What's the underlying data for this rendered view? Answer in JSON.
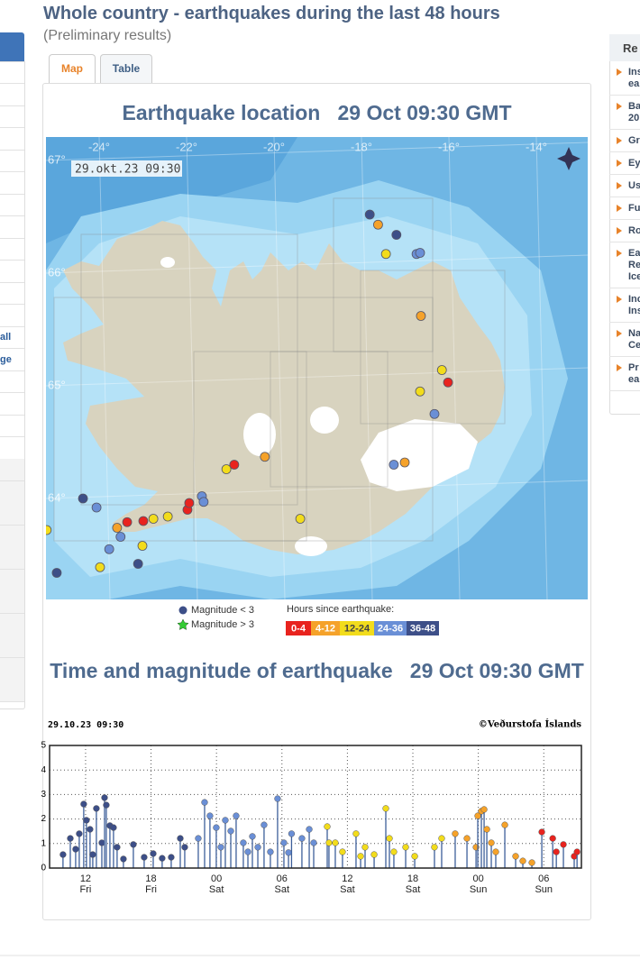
{
  "header": {
    "title": "Whole country - earthquakes during the last 48 hours",
    "subtitle": "(Preliminary results)"
  },
  "tabs": [
    "Map",
    "Table"
  ],
  "left_menu": [
    "all",
    "ge"
  ],
  "right_menu": {
    "title": "Re",
    "items": [
      "Ins\nea",
      "Ba\n20",
      "Gr",
      "Ey",
      "Us",
      "Fu",
      "Ro",
      "Ea\nRe\nIce",
      "Inc\nIns",
      "Na\nCe",
      "Pr\nea"
    ]
  },
  "map": {
    "title": "Earthquake location   29 Oct 09:30 GMT",
    "stamp": "29.okt.23  09:30",
    "lon_ticks": [
      {
        "value": -24,
        "label": "-24°"
      },
      {
        "value": -22,
        "label": "-22°"
      },
      {
        "value": -20,
        "label": "-20°"
      },
      {
        "value": -18,
        "label": "-18°"
      },
      {
        "value": -16,
        "label": "-16°"
      },
      {
        "value": -14,
        "label": "-14°"
      }
    ],
    "lat_ticks": [
      {
        "value": 67,
        "label": "67°"
      },
      {
        "value": 66,
        "label": "66°"
      },
      {
        "value": 65,
        "label": "65°"
      },
      {
        "value": 64,
        "label": "64°"
      }
    ],
    "magnitude_legend": [
      "Magnitude < 3",
      "Magnitude > 3"
    ],
    "age_legend": {
      "title": "Hours since earthquake:",
      "buckets": [
        {
          "label": "0-4",
          "color": "#e8231e",
          "lon": [
            -22.99,
            -23.36,
            -21.98,
            -21.94,
            -20.91,
            -16.02
          ],
          "lat": [
            63.8,
            63.79,
            63.9,
            63.96,
            64.3,
            65.03
          ]
        },
        {
          "label": "4-12",
          "color": "#f5a22a",
          "lon": [
            -17.62,
            -16.64,
            -17.01,
            -20.21,
            -23.59
          ],
          "lat": [
            66.43,
            65.62,
            64.32,
            64.37,
            63.74
          ]
        },
        {
          "label": "12-24",
          "color": "#f2dc1c",
          "lon": [
            -17.44,
            -16.16,
            -16.66,
            -21.09,
            -22.76,
            -22.43,
            -23.01,
            -23.98,
            -19.4,
            -25.2
          ],
          "lat": [
            66.17,
            65.14,
            64.95,
            64.26,
            63.82,
            63.84,
            63.58,
            63.39,
            63.82,
            63.72
          ]
        },
        {
          "label": "24-36",
          "color": "#6a8fd6",
          "lon": [
            -16.74,
            -16.66,
            -16.33,
            -17.26,
            -21.65,
            -21.61,
            -24.06,
            -23.77,
            -23.51
          ],
          "lat": [
            66.17,
            66.18,
            64.75,
            64.3,
            64.02,
            63.97,
            63.92,
            63.55,
            63.66
          ]
        },
        {
          "label": "36-48",
          "color": "#3d4f88",
          "lon": [
            -17.81,
            -17.2,
            -24.37,
            -23.11,
            -24.97
          ],
          "lat": [
            66.52,
            66.34,
            64.0,
            63.42,
            63.34
          ]
        }
      ]
    }
  },
  "chart_data": {
    "type": "stem",
    "title": "Time and magnitude of earthquake   29 Oct 09:30 GMT",
    "stamp_left": "29.10.23 09:30",
    "stamp_right": "©Veðurstofa Íslands",
    "xlim": [
      8.7,
      57.45
    ],
    "ylim": [
      0,
      5
    ],
    "yticks": [
      0,
      1,
      2,
      3,
      4,
      5
    ],
    "grid": true,
    "xticks": [
      {
        "value": 12,
        "label": "12\nFri"
      },
      {
        "value": 18,
        "label": "18\nFri"
      },
      {
        "value": 24,
        "label": "00\nSat"
      },
      {
        "value": 30,
        "label": "06\nSat"
      },
      {
        "value": 36,
        "label": "12\nSat"
      },
      {
        "value": 42,
        "label": "18\nSat"
      },
      {
        "value": 48,
        "label": "00\nSun"
      },
      {
        "value": 54,
        "label": "06\nSun"
      }
    ],
    "series": [
      {
        "color": "#3d4f88",
        "x": [
          9.93,
          10.6,
          11.09,
          11.42,
          11.83,
          12.08,
          12.41,
          12.66,
          12.99,
          13.49,
          13.74,
          13.9,
          14.23,
          14.56,
          14.89,
          15.47,
          16.38,
          17.37,
          18.2,
          19.02,
          19.85,
          20.68,
          21.09
        ],
        "values": [
          0.55,
          1.21,
          0.77,
          1.4,
          2.61,
          1.95,
          1.58,
          0.55,
          2.43,
          1.03,
          2.87,
          2.57,
          1.73,
          1.65,
          0.85,
          0.37,
          0.96,
          0.44,
          0.59,
          0.4,
          0.44,
          1.21,
          0.85
        ]
      },
      {
        "color": "#6a8fd6",
        "x": [
          22.33,
          22.91,
          23.4,
          23.98,
          24.4,
          24.81,
          25.31,
          25.8,
          26.46,
          26.88,
          27.29,
          27.79,
          28.36,
          28.94,
          29.6,
          30.18,
          30.6,
          30.88,
          31.83,
          32.5,
          32.91
        ],
        "values": [
          1.21,
          2.68,
          2.13,
          1.65,
          0.85,
          1.95,
          1.51,
          2.13,
          1.03,
          0.66,
          1.29,
          0.85,
          1.76,
          0.66,
          2.83,
          1.03,
          0.63,
          1.4,
          1.21,
          1.58,
          1.03
        ]
      },
      {
        "color": "#f2dc1c",
        "x": [
          34.15,
          34.31,
          34.89,
          35.55,
          36.79,
          37.21,
          37.62,
          38.45,
          39.52,
          39.85,
          40.26,
          41.34,
          42.17,
          43.98,
          44.64
        ],
        "values": [
          1.69,
          1.03,
          1.03,
          0.66,
          1.4,
          0.48,
          0.85,
          0.55,
          2.43,
          1.21,
          0.66,
          0.85,
          0.48,
          0.85,
          1.21
        ]
      },
      {
        "color": "#f5a22a",
        "x": [
          45.88,
          46.96,
          47.79,
          47.95,
          48.28,
          48.53,
          48.78,
          49.19,
          49.6,
          50.43,
          51.42,
          52.08,
          52.91
        ],
        "values": [
          1.4,
          1.21,
          0.85,
          2.13,
          2.32,
          2.39,
          1.58,
          1.03,
          0.66,
          1.76,
          0.48,
          0.29,
          0.22
        ]
      },
      {
        "color": "#e8231e",
        "x": [
          53.82,
          54.82,
          55.15,
          55.8,
          56.79,
          57.05
        ],
        "values": [
          1.47,
          1.21,
          0.66,
          0.96,
          0.48,
          0.66
        ]
      }
    ]
  }
}
